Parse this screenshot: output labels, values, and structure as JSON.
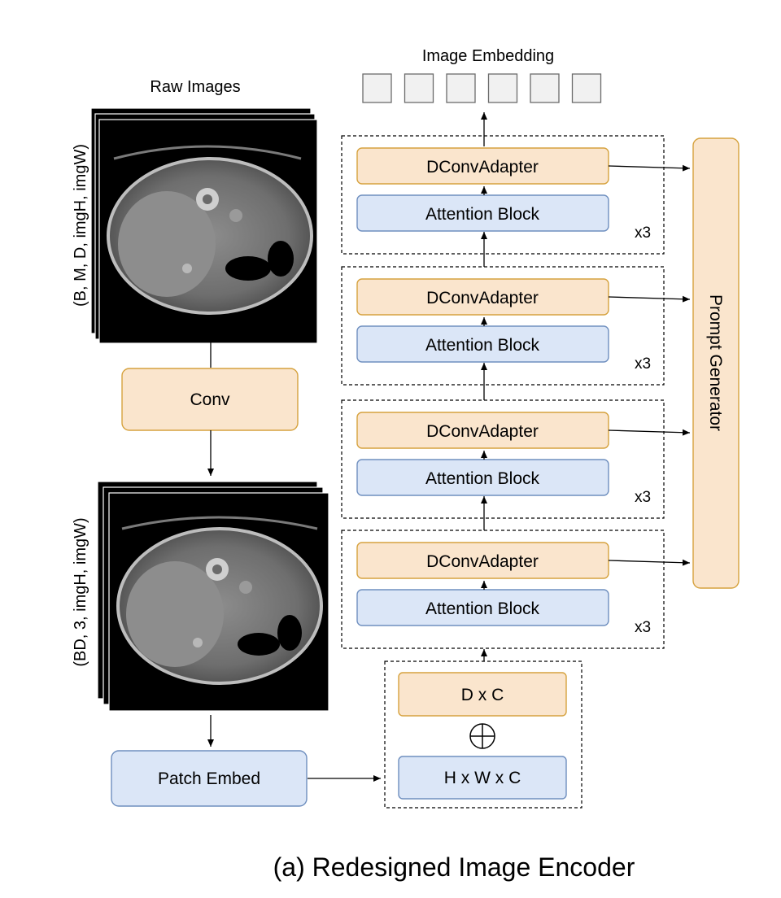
{
  "title": "(a) Redesigned Image Encoder",
  "raw_images": {
    "label": "Raw Images",
    "shape_label": "(B, M, D, imgH, imgW)"
  },
  "conv_label": "Conv",
  "processed_images": {
    "shape_label": "(BD, 3, imgH, imgW)"
  },
  "patch_embed_label": "Patch Embed",
  "position_embed": {
    "top_label": "D x C",
    "bottom_label": "H x W x C",
    "operator": "add-circle-icon"
  },
  "image_embedding": {
    "label": "Image Embedding",
    "token_count": 6
  },
  "stages": [
    {
      "adapter_label": "DConvAdapter",
      "attention_label": "Attention Block",
      "repeat_label": "x3"
    },
    {
      "adapter_label": "DConvAdapter",
      "attention_label": "Attention Block",
      "repeat_label": "x3"
    },
    {
      "adapter_label": "DConvAdapter",
      "attention_label": "Attention Block",
      "repeat_label": "x3"
    },
    {
      "adapter_label": "DConvAdapter",
      "attention_label": "Attention Block",
      "repeat_label": "x3"
    }
  ],
  "prompt_generator_label": "Prompt Generator",
  "colors": {
    "orange_fill": "#fae5cd",
    "orange_stroke": "#d6a23e",
    "blue_fill": "#dbe6f7",
    "blue_stroke": "#6f8fbf"
  }
}
